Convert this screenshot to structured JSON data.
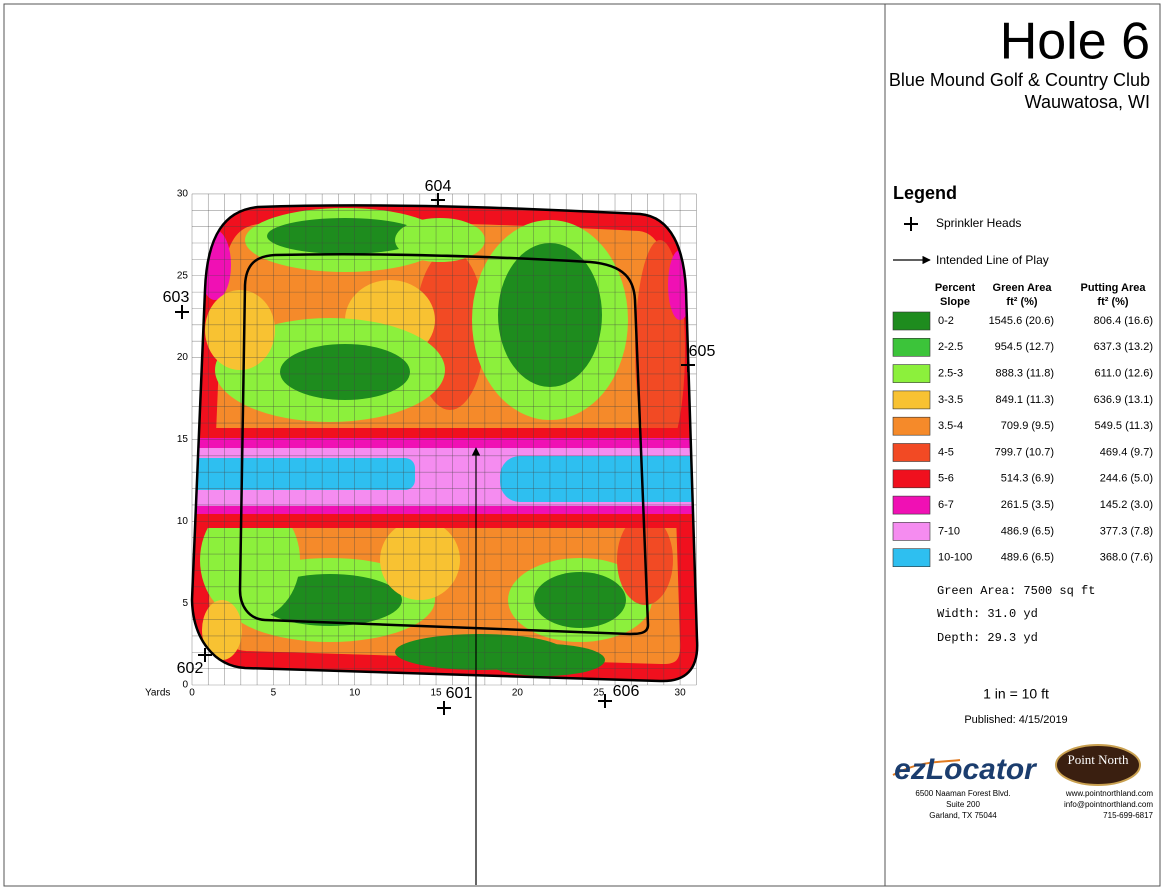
{
  "header": {
    "title": "Hole 6",
    "club": "Blue Mound Golf & Country Club",
    "location": "Wauwatosa, WI"
  },
  "map": {
    "axis_label": "Yards",
    "xlim": [
      0,
      31
    ],
    "ylim": [
      0,
      30
    ],
    "xticks": [
      0,
      5,
      10,
      15,
      20,
      25,
      30
    ],
    "yticks": [
      0,
      5,
      10,
      15,
      20,
      25,
      30
    ],
    "sprinklers": [
      "604",
      "603",
      "605",
      "602",
      "601",
      "606"
    ]
  },
  "legend": {
    "title": "Legend",
    "sprinkler_label": "Sprinkler Heads",
    "line_label": "Intended Line of Play",
    "columns": [
      [
        "Percent",
        "Slope"
      ],
      [
        "Green Area",
        "ft² (%)"
      ],
      [
        "Putting Area",
        "ft² (%)"
      ]
    ],
    "rows": [
      {
        "slope": "0-2",
        "green": "1545.6 (20.6)",
        "putting": "806.4 (16.6)",
        "color": "#1e8c1e"
      },
      {
        "slope": "2-2.5",
        "green": "954.5 (12.7)",
        "putting": "637.3 (13.2)",
        "color": "#3cc43a"
      },
      {
        "slope": "2.5-3",
        "green": "888.3 (11.8)",
        "putting": "611.0 (12.6)",
        "color": "#8cf03c"
      },
      {
        "slope": "3-3.5",
        "green": "849.1 (11.3)",
        "putting": "636.9 (13.1)",
        "color": "#f8c232"
      },
      {
        "slope": "3.5-4",
        "green": "709.9 (9.5)",
        "putting": "549.5 (11.3)",
        "color": "#f58a2a"
      },
      {
        "slope": "4-5",
        "green": "799.7 (10.7)",
        "putting": "469.4 (9.7)",
        "color": "#f24a24"
      },
      {
        "slope": "5-6",
        "green": "514.3 (6.9)",
        "putting": "244.6 (5.0)",
        "color": "#f0101e"
      },
      {
        "slope": "6-7",
        "green": "261.5 (3.5)",
        "putting": "145.2 (3.0)",
        "color": "#f010b4"
      },
      {
        "slope": "7-10",
        "green": "486.9 (6.5)",
        "putting": "377.3 (7.8)",
        "color": "#f58cf0"
      },
      {
        "slope": "10-100",
        "green": "489.6 (6.5)",
        "putting": "368.0 (7.6)",
        "color": "#2ebff0"
      }
    ]
  },
  "stats": [
    "Green Area: 7500 sq ft",
    "Width: 31.0 yd",
    "Depth: 29.3 yd"
  ],
  "scale": "1 in = 10 ft",
  "published": "Published: 4/15/2019",
  "logos": {
    "ezlocator": "ezLocator",
    "pointnorth": "Point North"
  },
  "address": [
    "6500 Naaman Forest Blvd.",
    "Suite 200",
    "Garland, TX  75044"
  ],
  "contact": [
    "www.pointnorthland.com",
    "info@pointnorthland.com",
    "715-699-6817"
  ]
}
